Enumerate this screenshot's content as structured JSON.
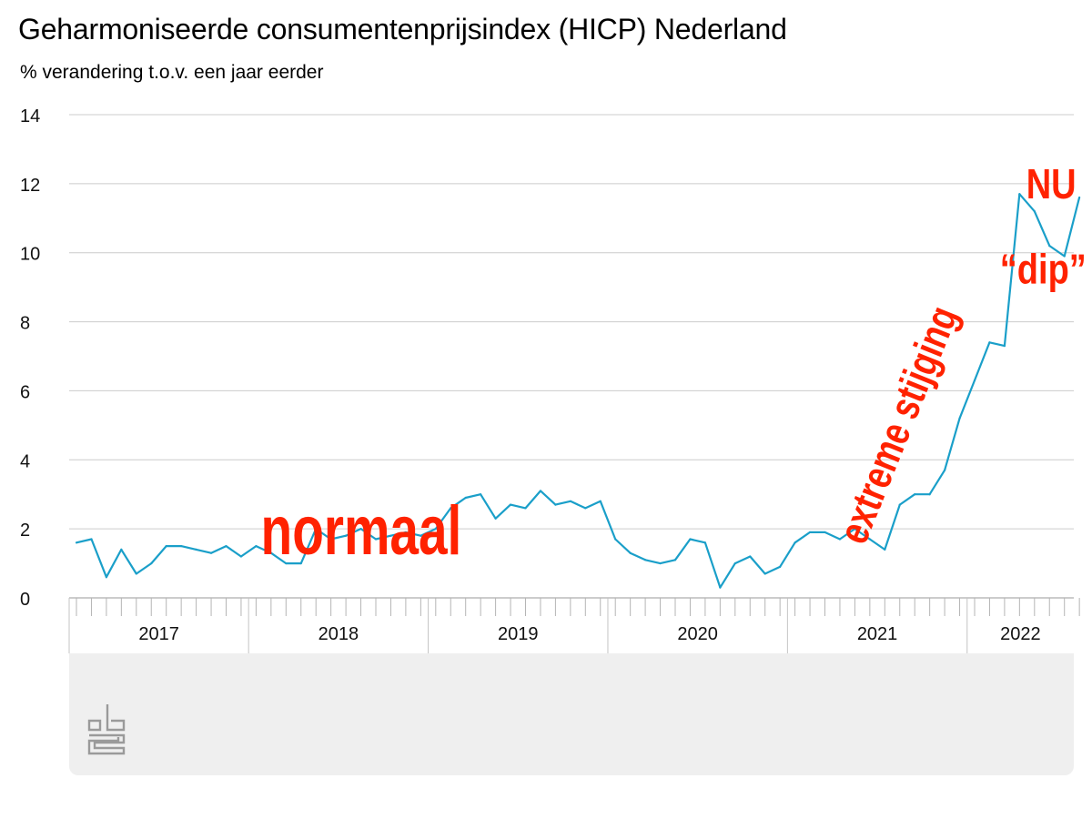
{
  "title": "Geharmoniseerde consumentenprijsindex (HICP) Nederland",
  "subtitle": "% verandering t.o.v. een jaar eerder",
  "colors": {
    "line": "#1a9fc9",
    "annotation": "#ff2200",
    "grid": "#cccccc",
    "footer": "#efefef"
  },
  "logo": {
    "icon": "cbs-logo-icon"
  },
  "chart_data": {
    "type": "line",
    "title": "Geharmoniseerde consumentenprijsindex (HICP) Nederland",
    "ylabel": "% verandering t.o.v. een jaar eerder",
    "ylim": [
      0,
      14
    ],
    "yticks": [
      0,
      2,
      4,
      6,
      8,
      10,
      12,
      14
    ],
    "grid": true,
    "x_start": "2017-01",
    "x_end": "2022-07",
    "year_labels": [
      "2017",
      "2018",
      "2019",
      "2020",
      "2021",
      "2022"
    ],
    "series": [
      {
        "values": [
          1.6,
          1.7,
          0.6,
          1.4,
          0.7,
          1.0,
          1.5,
          1.5,
          1.4,
          1.3,
          1.5,
          1.2,
          1.5,
          1.3,
          1.0,
          1.0,
          2.0,
          1.7,
          1.8,
          2.0,
          1.7,
          1.8,
          1.9,
          1.8,
          2.0,
          2.6,
          2.9,
          3.0,
          2.3,
          2.7,
          2.6,
          3.1,
          2.7,
          2.8,
          2.6,
          2.8,
          1.7,
          1.3,
          1.1,
          1.0,
          1.1,
          1.7,
          1.6,
          0.3,
          1.0,
          1.2,
          0.7,
          0.9,
          1.6,
          1.9,
          1.9,
          1.7,
          2.0,
          1.7,
          1.4,
          2.7,
          3.0,
          3.0,
          3.7,
          5.2,
          6.3,
          7.4,
          7.3,
          11.7,
          11.2,
          10.2,
          9.9,
          11.6
        ]
      }
    ],
    "annotations": [
      {
        "id": "normaal",
        "text": "normaal",
        "x": "2018-08",
        "y": 1.9
      },
      {
        "id": "stijging",
        "text": "extreme stijging",
        "x": "2021-08",
        "y": 5.0,
        "rotation": -68
      },
      {
        "id": "dip",
        "text": "“dip”",
        "x": "2022-05",
        "y": 9.9
      },
      {
        "id": "nu",
        "text": "NU",
        "x": "2022-07",
        "y": 12.0
      }
    ]
  }
}
